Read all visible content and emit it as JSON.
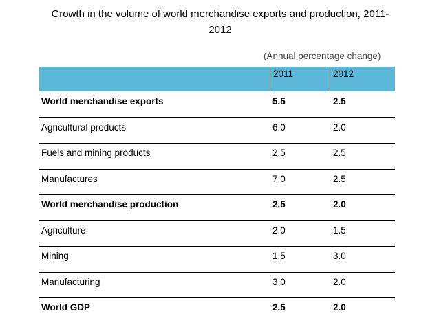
{
  "chart_data": {
    "type": "table",
    "title": "Growth in the volume of world merchandise exports and production, 2011-2012",
    "title_line1": "Growth in the volume of world merchandise exports and production, 2011-",
    "title_line2": "2012",
    "unit_note": "(Annual percentage change)",
    "columns": [
      "2011",
      "2012"
    ],
    "rows": [
      {
        "label": "World merchandise exports",
        "v2011": "5.5",
        "v2012": "2.5",
        "bold": true
      },
      {
        "label": "Agricultural products",
        "v2011": "6.0",
        "v2012": "2.0",
        "bold": false
      },
      {
        "label": "Fuels and mining products",
        "v2011": "2.5",
        "v2012": "2.5",
        "bold": false
      },
      {
        "label": "Manufactures",
        "v2011": "7.0",
        "v2012": "2.5",
        "bold": false
      },
      {
        "label": "World merchandise production",
        "v2011": "2.5",
        "v2012": "2.0",
        "bold": true
      },
      {
        "label": "Agriculture",
        "v2011": "2.0",
        "v2012": "1.5",
        "bold": false
      },
      {
        "label": "Mining",
        "v2011": "1.5",
        "v2012": "3.0",
        "bold": false
      },
      {
        "label": "Manufacturing",
        "v2011": "3.0",
        "v2012": "2.0",
        "bold": false
      },
      {
        "label": "World GDP",
        "v2011": "2.5",
        "v2012": "2.0",
        "bold": true
      }
    ]
  },
  "colors": {
    "header_fill": "#5cb8d9",
    "rule": "#000000",
    "note_text": "#444444"
  }
}
